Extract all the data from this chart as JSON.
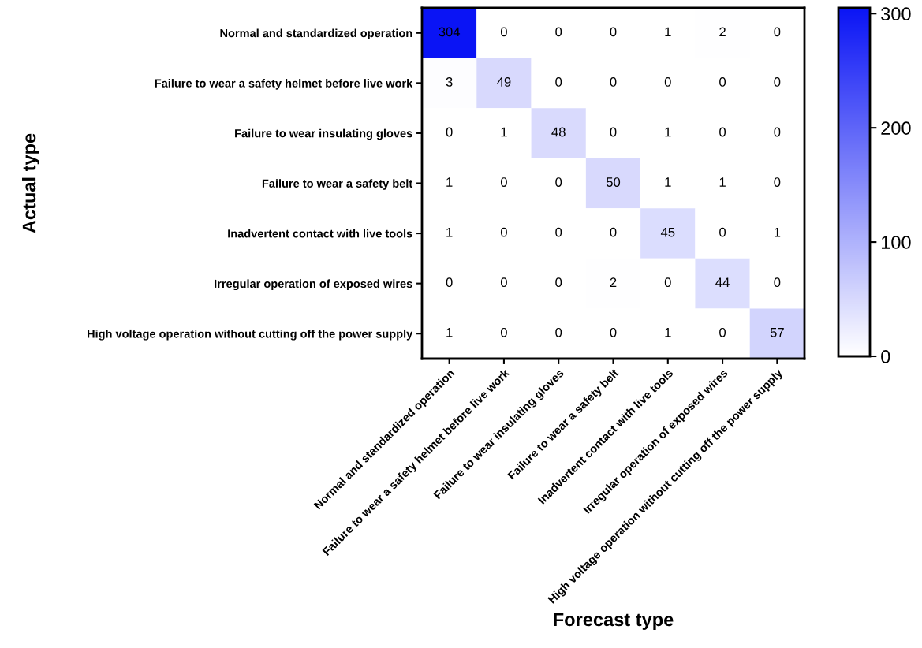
{
  "chart_data": {
    "type": "heatmap",
    "xlabel": "Forecast type",
    "ylabel": "Actual type",
    "categories": [
      "Normal and standardized operation",
      "Failure to wear a safety helmet before live work",
      "Failure to wear insulating gloves",
      "Failure to wear a safety belt",
      "Inadvertent contact with live tools",
      "Irregular operation of exposed wires",
      "High voltage operation without cutting off the power supply"
    ],
    "y_categories": [
      "Normal and standardized operation",
      "Failure to wear a safety helmet before live work",
      "Failure to wear insulating gloves",
      "Failure to wear a safety belt",
      "Inadvertent contact with live tools",
      "Irregular operation of exposed wires",
      "High voltage operation without cutting off the power supply"
    ],
    "cells": [
      [
        304,
        0,
        0,
        0,
        1,
        2,
        0
      ],
      [
        3,
        49,
        0,
        0,
        0,
        0,
        0
      ],
      [
        0,
        1,
        48,
        0,
        1,
        0,
        0
      ],
      [
        1,
        0,
        0,
        50,
        1,
        1,
        0
      ],
      [
        1,
        0,
        0,
        0,
        45,
        0,
        1
      ],
      [
        0,
        0,
        0,
        2,
        0,
        44,
        0
      ],
      [
        1,
        0,
        0,
        0,
        1,
        0,
        57
      ]
    ],
    "colors": [
      "#ffffff",
      "#0a14f5"
    ],
    "clim": [
      0,
      305
    ],
    "cticks": [
      0,
      100,
      200,
      300
    ],
    "data_labels": true
  }
}
